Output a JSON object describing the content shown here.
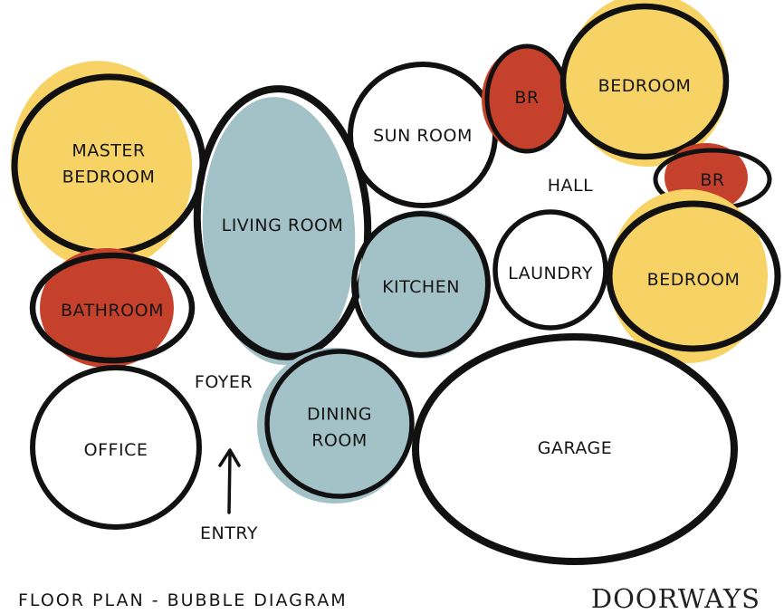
{
  "colors": {
    "yellow": "#f7d365",
    "red": "#c6412b",
    "blue": "#a3c2c7",
    "outline": "#111111",
    "background": "#ffffff"
  },
  "rooms": [
    {
      "id": "master-bedroom",
      "lines": [
        "MASTER",
        "BEDROOM"
      ],
      "fill": "yellow"
    },
    {
      "id": "bathroom",
      "lines": [
        "BATHROOM"
      ],
      "fill": "red"
    },
    {
      "id": "office",
      "lines": [
        "OFFICE"
      ],
      "fill": "none"
    },
    {
      "id": "living-room",
      "lines": [
        "LIVING ROOM"
      ],
      "fill": "blue"
    },
    {
      "id": "sun-room",
      "lines": [
        "SUN ROOM"
      ],
      "fill": "none"
    },
    {
      "id": "kitchen",
      "lines": [
        "KITCHEN"
      ],
      "fill": "blue"
    },
    {
      "id": "dining-room",
      "lines": [
        "DINING",
        "ROOM"
      ],
      "fill": "blue"
    },
    {
      "id": "br-top",
      "lines": [
        "BR"
      ],
      "fill": "red"
    },
    {
      "id": "bedroom-top",
      "lines": [
        "BEDROOM"
      ],
      "fill": "yellow"
    },
    {
      "id": "br-right",
      "lines": [
        "BR"
      ],
      "fill": "red"
    },
    {
      "id": "laundry",
      "lines": [
        "LAUNDRY"
      ],
      "fill": "none"
    },
    {
      "id": "bedroom-right",
      "lines": [
        "BEDROOM"
      ],
      "fill": "yellow"
    },
    {
      "id": "garage",
      "lines": [
        "GARAGE"
      ],
      "fill": "none"
    }
  ],
  "labels": {
    "hall": "HALL",
    "foyer": "FOYER",
    "entry": "ENTRY"
  },
  "caption": "FLOOR PLAN  -  BUBBLE DIAGRAM",
  "brand": "DOORWAYS"
}
